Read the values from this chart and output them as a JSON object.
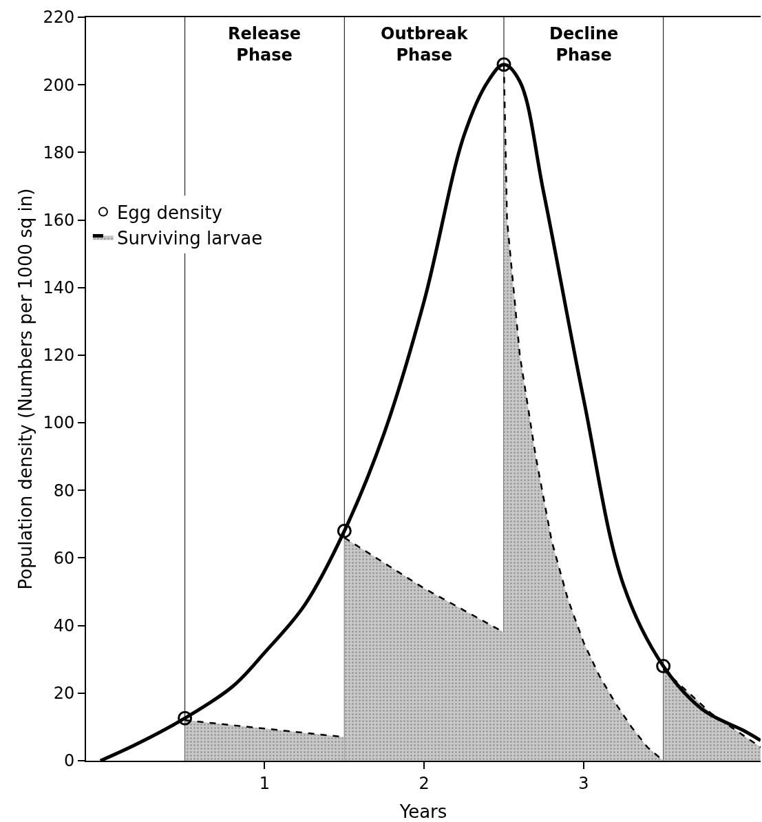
{
  "chart_data": {
    "type": "line",
    "xlabel": "Years",
    "ylabel": "Population density (Numbers per 1000 sq in)",
    "xlim": [
      -0.12,
      4.11
    ],
    "xticks": [
      1,
      2,
      3
    ],
    "ylim": [
      0,
      220
    ],
    "yticks": [
      0,
      20,
      40,
      60,
      80,
      100,
      120,
      140,
      160,
      180,
      200,
      220
    ],
    "grid": false,
    "legend": "top left",
    "series": [
      {
        "color": "#000000",
        "line_style": "solid",
        "marker": "none",
        "x": [
          -0.03,
          0.2,
          0.5,
          0.8,
          1.0,
          1.25,
          1.5,
          1.75,
          2.0,
          2.25,
          2.4,
          2.5,
          2.6,
          2.75,
          3.0,
          3.25,
          3.5,
          3.75,
          4.0,
          4.11
        ],
        "values": [
          0,
          5,
          12.6,
          22,
          32,
          46,
          68,
          97,
          136,
          185,
          201,
          206,
          201,
          168,
          107,
          52,
          28,
          15,
          9,
          6
        ]
      },
      {
        "type": "scatter",
        "name": "Egg density",
        "color": "#000000",
        "marker": "circle",
        "x": [
          0.5,
          1.5,
          2.5,
          3.5
        ],
        "values": [
          12.6,
          68,
          206,
          28
        ]
      },
      {
        "type": "area",
        "name": "Surviving larvae",
        "color": "#c8c8c8",
        "line_style": "dashed",
        "x": [
          0.5,
          1.0,
          1.5
        ],
        "values": [
          12,
          9.5,
          7
        ]
      },
      {
        "type": "area",
        "color": "#c8c8c8",
        "line_style": "dashed",
        "x": [
          1.5,
          2.0,
          2.5
        ],
        "values": [
          66,
          51,
          38
        ]
      },
      {
        "type": "area",
        "color": "#c8c8c8",
        "line_style": "dashed",
        "x": [
          2.5,
          2.52,
          2.6,
          2.7,
          2.8,
          2.9,
          3.0,
          3.1,
          3.2,
          3.3,
          3.4,
          3.5
        ],
        "values": [
          206,
          160,
          120,
          90,
          65,
          48,
          35,
          25,
          17,
          10,
          4,
          0
        ]
      },
      {
        "type": "area",
        "color": "#c8c8c8",
        "line_style": "dashed",
        "x": [
          3.5,
          3.8,
          4.11
        ],
        "values": [
          27,
          14,
          4
        ]
      }
    ],
    "ref_lines": [
      {
        "axis": "x",
        "value": 0.5
      },
      {
        "axis": "x",
        "value": 1.5
      },
      {
        "axis": "x",
        "value": 2.5
      },
      {
        "axis": "x",
        "value": 3.5
      }
    ],
    "annotations": [
      "Release\nPhase",
      "Outbreak\nPhase",
      "Decline\nPhase"
    ]
  }
}
